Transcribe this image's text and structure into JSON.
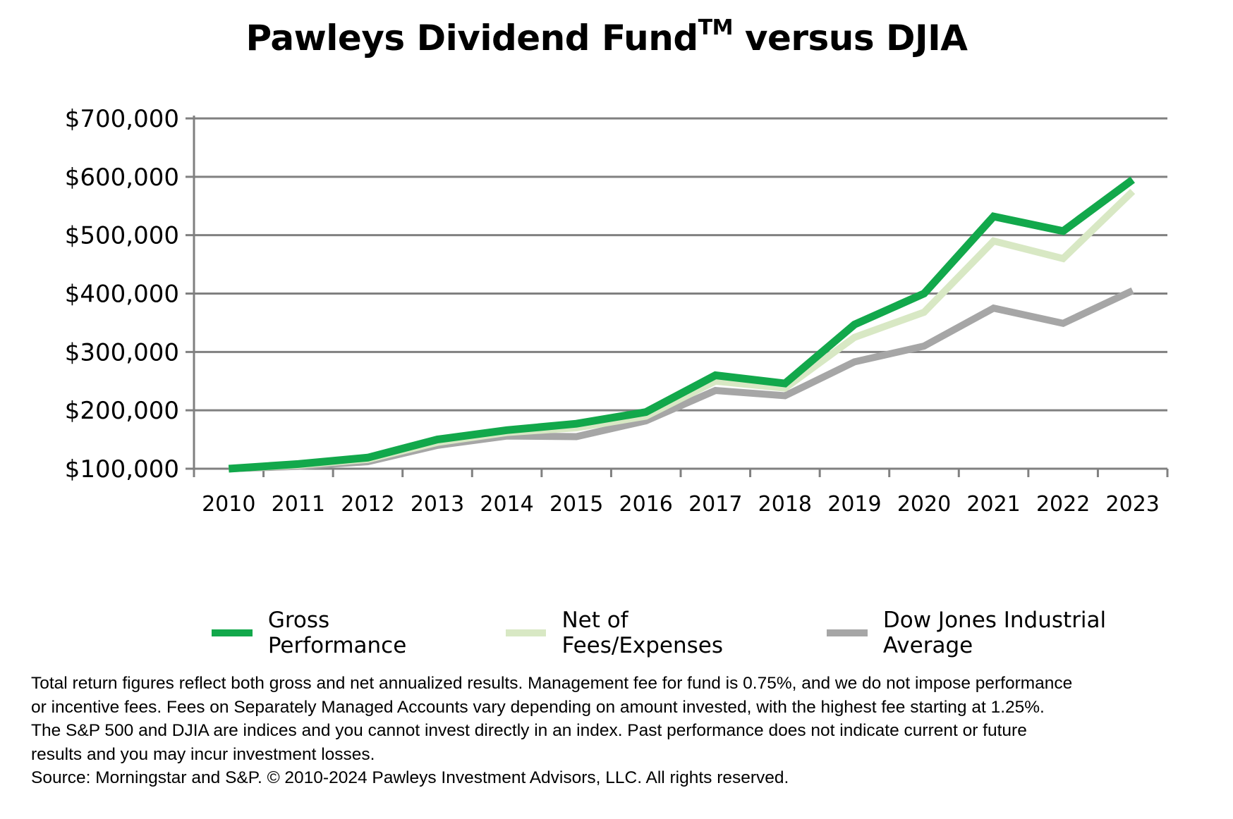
{
  "chart_data": {
    "type": "line",
    "title": "Pawleys Dividend Fund",
    "title_superscript": "TM",
    "title_suffix": " versus DJIA",
    "categories": [
      "2010",
      "2011",
      "2012",
      "2013",
      "2014",
      "2015",
      "2016",
      "2017",
      "2018",
      "2019",
      "2020",
      "2021",
      "2022",
      "2023"
    ],
    "ylim": [
      100000,
      700000
    ],
    "yticks": [
      100000,
      200000,
      300000,
      400000,
      500000,
      600000,
      700000
    ],
    "ytick_labels": [
      "$100,000",
      "$200,000",
      "$300,000",
      "$400,000",
      "$500,000",
      "$600,000",
      "$700,000"
    ],
    "grid": true,
    "legend_position": "bottom",
    "series": [
      {
        "name": "Gross Performance",
        "color": "#12a84b",
        "values": [
          100000,
          108000,
          119000,
          150000,
          166000,
          177000,
          197000,
          260000,
          246000,
          347000,
          400000,
          532000,
          507000,
          595000
        ]
      },
      {
        "name": "Net of Fees/Expenses",
        "color": "#d8e8c4",
        "values": [
          100000,
          106000,
          116000,
          145000,
          162000,
          170000,
          190000,
          250000,
          238000,
          325000,
          368000,
          490000,
          460000,
          575000
        ]
      },
      {
        "name": "Dow Jones Industrial Average",
        "color": "#a6a6a6",
        "values": [
          100000,
          104000,
          112000,
          140000,
          156000,
          155000,
          182000,
          234000,
          225000,
          283000,
          310000,
          375000,
          349000,
          405000
        ]
      }
    ]
  },
  "footnote": {
    "lines": [
      "Total return figures reflect both gross and net annualized results. Management fee for fund is 0.75%, and we do not impose performance",
      "or incentive fees.  Fees on Separately Managed Accounts vary depending on amount invested, with the highest fee starting at 1.25%.",
      "The S&P 500 and DJIA are indices and you cannot invest directly in an index. Past performance does not indicate current or future",
      "results and you may incur investment losses.",
      "Source: Morningstar and S&P.  © 2010-2024 Pawleys Investment Advisors, LLC. All rights reserved."
    ]
  }
}
